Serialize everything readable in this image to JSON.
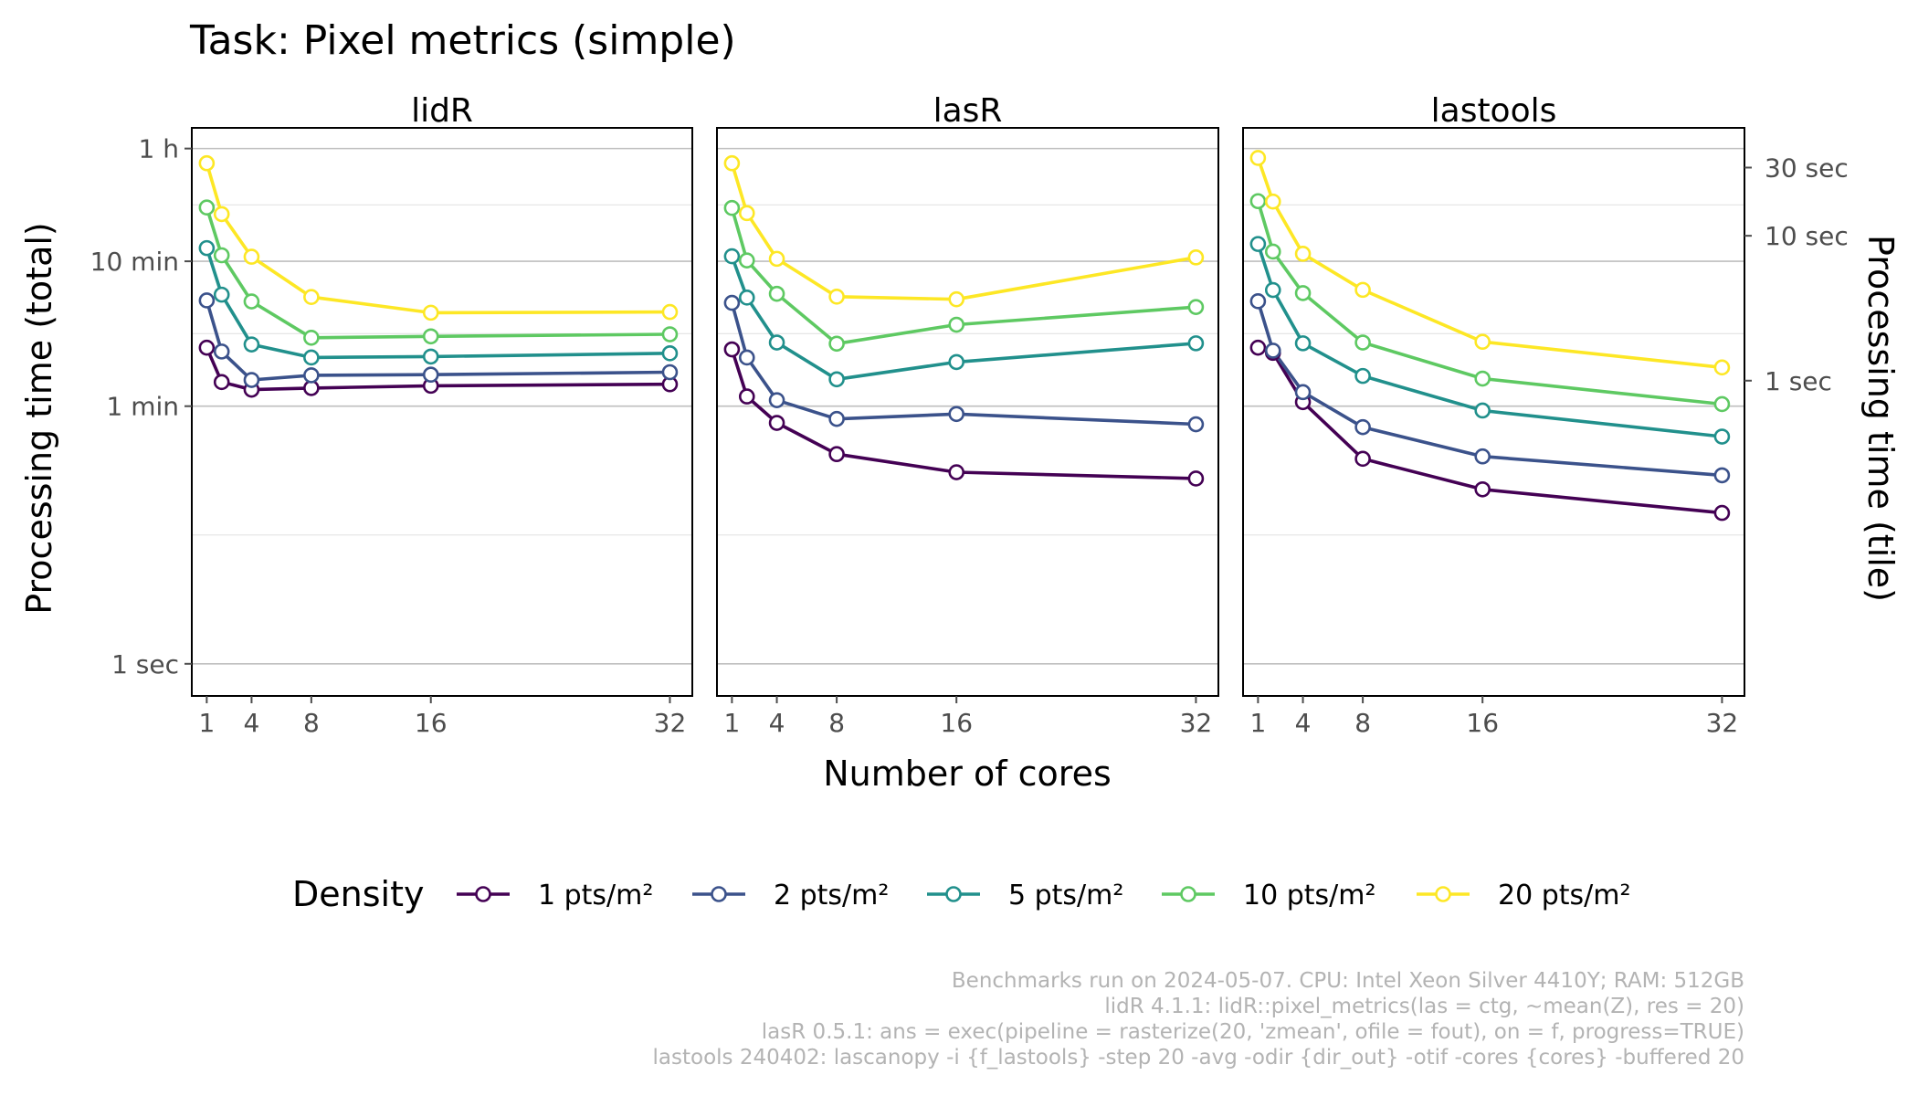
{
  "chart_data": {
    "type": "line",
    "title": "Task: Pixel metrics (simple)",
    "xlabel": "Number of cores",
    "ylabel": "Processing time (total)",
    "ylabel_right": "Processing time (tile)",
    "x_ticks": [
      1,
      4,
      8,
      16,
      32
    ],
    "xlim": [
      0,
      33.5
    ],
    "y_scale": "log",
    "y_unit": "seconds",
    "ylim_seconds": [
      0.6,
      5000
    ],
    "y_ticks_left": [
      {
        "label": "1 h",
        "seconds": 3600
      },
      {
        "label": "10 min",
        "seconds": 600
      },
      {
        "label": "1 min",
        "seconds": 60
      },
      {
        "label": "1 sec",
        "seconds": 1
      }
    ],
    "y_ticks_right": [
      {
        "label": "30 sec",
        "seconds": 2660
      },
      {
        "label": "10 sec",
        "seconds": 900
      },
      {
        "label": "1 sec",
        "seconds": 90
      }
    ],
    "grid": true,
    "legend_title": "Density",
    "legend_position": "bottom",
    "caption": [
      "Benchmarks run on 2024-05-07. CPU: Intel Xeon Silver 4410Y; RAM: 512GB",
      "lidR 4.1.1: lidR::pixel_metrics(las = ctg, ~mean(Z), res = 20)",
      "lasR 0.5.1: ans = exec(pipeline = rasterize(20, 'zmean', ofile = fout), on = f, progress=TRUE)",
      "lastools 240402: lascanopy -i {f_lastools} -step 20 -avg -odir {dir_out} -otif -cores {cores} -buffered 20"
    ],
    "x": [
      1,
      2,
      4,
      8,
      16,
      32
    ],
    "panels": [
      {
        "name": "lidR",
        "series": [
          {
            "name": "1 pts/m²",
            "color": "#440154",
            "values": [
              152,
              88,
              78,
              80,
              83,
              85
            ]
          },
          {
            "name": "2 pts/m²",
            "color": "#3b528b",
            "values": [
              322,
              143,
              91,
              98,
              99,
              103
            ]
          },
          {
            "name": "5 pts/m²",
            "color": "#21908c",
            "values": [
              740,
              353,
              160,
              130,
              132,
              139
            ]
          },
          {
            "name": "10 pts/m²",
            "color": "#5ec962",
            "values": [
              1410,
              660,
              317,
              178,
              182,
              188
            ]
          },
          {
            "name": "20 pts/m²",
            "color": "#fde725",
            "values": [
              2850,
              1270,
              645,
              340,
              265,
              268
            ]
          }
        ]
      },
      {
        "name": "lasR",
        "series": [
          {
            "name": "1 pts/m²",
            "color": "#440154",
            "values": [
              148,
              70,
              46,
              28,
              21,
              19
            ]
          },
          {
            "name": "2 pts/m²",
            "color": "#3b528b",
            "values": [
              310,
              130,
              66,
              49,
              53,
              45
            ]
          },
          {
            "name": "5 pts/m²",
            "color": "#21908c",
            "values": [
              650,
              337,
              165,
              92,
              121,
              163
            ]
          },
          {
            "name": "10 pts/m²",
            "color": "#5ec962",
            "values": [
              1400,
              608,
              358,
              162,
              219,
              290
            ]
          },
          {
            "name": "20 pts/m²",
            "color": "#fde725",
            "values": [
              2850,
              1290,
              624,
              342,
              328,
              638
            ]
          }
        ]
      },
      {
        "name": "lastools",
        "series": [
          {
            "name": "1 pts/m²",
            "color": "#440154",
            "values": [
              152,
              140,
              64,
              26,
              16,
              11
            ]
          },
          {
            "name": "2 pts/m²",
            "color": "#3b528b",
            "values": [
              318,
              145,
              75,
              43,
              27,
              20
            ]
          },
          {
            "name": "5 pts/m²",
            "color": "#21908c",
            "values": [
              790,
              380,
              163,
              97,
              56,
              37
            ]
          },
          {
            "name": "10 pts/m²",
            "color": "#5ec962",
            "values": [
              1560,
              700,
              362,
              165,
              93,
              62
            ]
          },
          {
            "name": "20 pts/m²",
            "color": "#fde725",
            "values": [
              3100,
              1550,
              676,
              381,
              167,
              111
            ]
          }
        ]
      }
    ]
  }
}
